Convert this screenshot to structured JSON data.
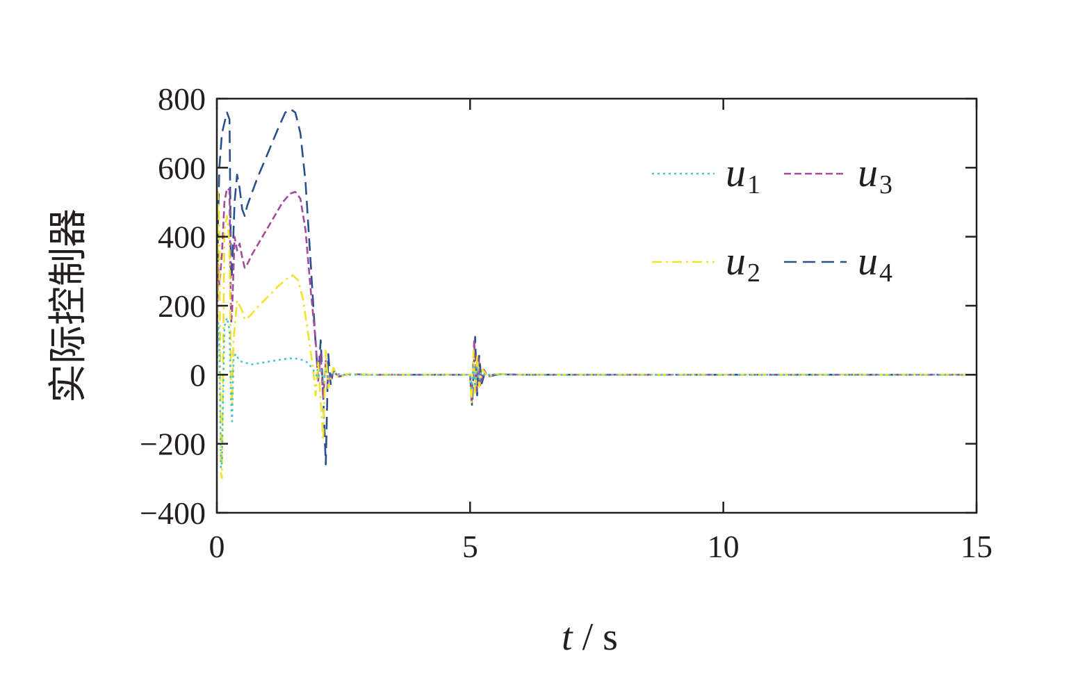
{
  "chart_data": {
    "type": "line",
    "xlabel": "t / s",
    "ylabel": "实际控制器",
    "xlim": [
      0,
      15
    ],
    "ylim": [
      -400,
      800
    ],
    "xticks": [
      0,
      5,
      10,
      15
    ],
    "yticks": [
      -400,
      -200,
      0,
      200,
      400,
      600,
      800
    ],
    "grid": false,
    "legend_position": "top-right",
    "series": [
      {
        "name": "u1",
        "color": "#4cc3c9",
        "dash": "dotted",
        "points": [
          [
            0,
            0
          ],
          [
            0.03,
            150
          ],
          [
            0.05,
            80
          ],
          [
            0.08,
            -270
          ],
          [
            0.1,
            -250
          ],
          [
            0.15,
            140
          ],
          [
            0.2,
            165
          ],
          [
            0.25,
            130
          ],
          [
            0.28,
            -80
          ],
          [
            0.3,
            -135
          ],
          [
            0.33,
            50
          ],
          [
            0.37,
            60
          ],
          [
            0.45,
            40
          ],
          [
            0.55,
            35
          ],
          [
            0.7,
            30
          ],
          [
            0.9,
            35
          ],
          [
            1.1,
            40
          ],
          [
            1.3,
            45
          ],
          [
            1.5,
            48
          ],
          [
            1.65,
            45
          ],
          [
            1.8,
            35
          ],
          [
            1.9,
            15
          ],
          [
            2.0,
            -10
          ],
          [
            2.05,
            20
          ],
          [
            2.1,
            -20
          ],
          [
            2.15,
            10
          ],
          [
            2.2,
            -5
          ],
          [
            2.3,
            3
          ],
          [
            2.5,
            0
          ],
          [
            3,
            0
          ],
          [
            5.0,
            0
          ],
          [
            5.03,
            -40
          ],
          [
            5.07,
            30
          ],
          [
            5.1,
            -35
          ],
          [
            5.14,
            25
          ],
          [
            5.18,
            -15
          ],
          [
            5.22,
            8
          ],
          [
            5.3,
            -3
          ],
          [
            5.4,
            1
          ],
          [
            6,
            0
          ],
          [
            15,
            0
          ]
        ]
      },
      {
        "name": "u2",
        "color": "#f1e22a",
        "dash": "dash-dot",
        "points": [
          [
            0,
            0
          ],
          [
            0.02,
            530
          ],
          [
            0.05,
            420
          ],
          [
            0.08,
            -290
          ],
          [
            0.1,
            -300
          ],
          [
            0.15,
            420
          ],
          [
            0.2,
            460
          ],
          [
            0.25,
            380
          ],
          [
            0.28,
            -30
          ],
          [
            0.3,
            -85
          ],
          [
            0.33,
            100
          ],
          [
            0.4,
            215
          ],
          [
            0.5,
            185
          ],
          [
            0.55,
            160
          ],
          [
            0.65,
            170
          ],
          [
            0.8,
            195
          ],
          [
            1.0,
            225
          ],
          [
            1.2,
            255
          ],
          [
            1.4,
            280
          ],
          [
            1.5,
            288
          ],
          [
            1.6,
            275
          ],
          [
            1.7,
            220
          ],
          [
            1.8,
            120
          ],
          [
            1.9,
            20
          ],
          [
            1.95,
            -60
          ],
          [
            2.0,
            40
          ],
          [
            2.05,
            -80
          ],
          [
            2.1,
            -190
          ],
          [
            2.15,
            70
          ],
          [
            2.2,
            -40
          ],
          [
            2.3,
            20
          ],
          [
            2.4,
            -8
          ],
          [
            2.6,
            3
          ],
          [
            3,
            0
          ],
          [
            5.0,
            0
          ],
          [
            5.03,
            -80
          ],
          [
            5.07,
            70
          ],
          [
            5.1,
            -60
          ],
          [
            5.14,
            60
          ],
          [
            5.18,
            -35
          ],
          [
            5.25,
            15
          ],
          [
            5.35,
            -6
          ],
          [
            5.5,
            2
          ],
          [
            6,
            0
          ],
          [
            15,
            0
          ]
        ]
      },
      {
        "name": "u3",
        "color": "#a24a9e",
        "dash": "dashed-fine",
        "points": [
          [
            0,
            0
          ],
          [
            0.02,
            320
          ],
          [
            0.05,
            260
          ],
          [
            0.1,
            350
          ],
          [
            0.15,
            500
          ],
          [
            0.2,
            540
          ],
          [
            0.25,
            535
          ],
          [
            0.28,
            150
          ],
          [
            0.3,
            180
          ],
          [
            0.35,
            400
          ],
          [
            0.4,
            360
          ],
          [
            0.45,
            380
          ],
          [
            0.5,
            340
          ],
          [
            0.55,
            310
          ],
          [
            0.6,
            320
          ],
          [
            0.7,
            350
          ],
          [
            0.9,
            400
          ],
          [
            1.1,
            450
          ],
          [
            1.3,
            500
          ],
          [
            1.45,
            525
          ],
          [
            1.55,
            530
          ],
          [
            1.65,
            510
          ],
          [
            1.75,
            420
          ],
          [
            1.85,
            250
          ],
          [
            1.95,
            100
          ],
          [
            2.0,
            -20
          ],
          [
            2.05,
            60
          ],
          [
            2.1,
            -70
          ],
          [
            2.15,
            40
          ],
          [
            2.2,
            -20
          ],
          [
            2.3,
            10
          ],
          [
            2.4,
            -5
          ],
          [
            2.6,
            2
          ],
          [
            3,
            0
          ],
          [
            5.0,
            0
          ],
          [
            5.03,
            -80
          ],
          [
            5.08,
            100
          ],
          [
            5.12,
            -50
          ],
          [
            5.16,
            50
          ],
          [
            5.2,
            -30
          ],
          [
            5.27,
            15
          ],
          [
            5.35,
            -5
          ],
          [
            5.5,
            2
          ],
          [
            6,
            0
          ],
          [
            15,
            0
          ]
        ]
      },
      {
        "name": "u4",
        "color": "#2a4f8d",
        "dash": "dashed",
        "points": [
          [
            0,
            0
          ],
          [
            0.02,
            420
          ],
          [
            0.05,
            600
          ],
          [
            0.1,
            700
          ],
          [
            0.15,
            730
          ],
          [
            0.2,
            760
          ],
          [
            0.25,
            740
          ],
          [
            0.28,
            280
          ],
          [
            0.3,
            300
          ],
          [
            0.35,
            500
          ],
          [
            0.4,
            580
          ],
          [
            0.45,
            540
          ],
          [
            0.5,
            480
          ],
          [
            0.55,
            460
          ],
          [
            0.6,
            490
          ],
          [
            0.7,
            530
          ],
          [
            0.8,
            570
          ],
          [
            1.0,
            640
          ],
          [
            1.2,
            710
          ],
          [
            1.35,
            760
          ],
          [
            1.45,
            770
          ],
          [
            1.55,
            760
          ],
          [
            1.65,
            700
          ],
          [
            1.75,
            560
          ],
          [
            1.85,
            330
          ],
          [
            1.95,
            90
          ],
          [
            2.0,
            -10
          ],
          [
            2.05,
            100
          ],
          [
            2.1,
            -60
          ],
          [
            2.15,
            -260
          ],
          [
            2.2,
            60
          ],
          [
            2.25,
            -30
          ],
          [
            2.3,
            15
          ],
          [
            2.4,
            -6
          ],
          [
            2.6,
            2
          ],
          [
            3,
            0
          ],
          [
            5.0,
            0
          ],
          [
            5.04,
            -90
          ],
          [
            5.1,
            110
          ],
          [
            5.14,
            -60
          ],
          [
            5.18,
            55
          ],
          [
            5.23,
            -25
          ],
          [
            5.3,
            10
          ],
          [
            5.4,
            -4
          ],
          [
            5.55,
            1
          ],
          [
            6,
            0
          ],
          [
            15,
            0
          ]
        ]
      }
    ]
  }
}
